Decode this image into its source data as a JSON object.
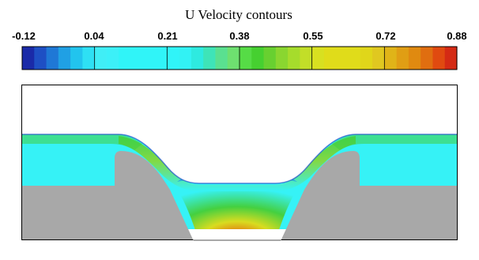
{
  "legend": {
    "title": "U Velocity contours",
    "tick_labels": [
      "-0.12",
      "0.04",
      "0.21",
      "0.38",
      "0.55",
      "0.72",
      "0.88"
    ],
    "band_colors": [
      "#1a2aa8",
      "#1e4fc4",
      "#1f78d6",
      "#20a0e4",
      "#22c4ee",
      "#2ee0f4",
      "#40eef6",
      "#3cf0f8",
      "#30f4f8",
      "#30f4f8",
      "#30f4f8",
      "#30f4f8",
      "#30f4f8",
      "#32f2f4",
      "#2eeae0",
      "#3ee4b8",
      "#5ae090",
      "#6ee070",
      "#56dc46",
      "#46d030",
      "#68d030",
      "#8ad630",
      "#a6dc2c",
      "#c2de28",
      "#d8e020",
      "#e0dc1a",
      "#e0dc1a",
      "#e0dc1a",
      "#e0d61a",
      "#e0c820",
      "#e0b418",
      "#e09e14",
      "#e08a10",
      "#e06e10",
      "#e04a10",
      "#d42a14"
    ]
  },
  "contour_colors": {
    "solid": "#a8a8a8",
    "low": "#1e50c8",
    "mid_low": "#20a0e4",
    "free_stream": "#36f2f6",
    "green": "#44d040",
    "yellow": "#d8dc20",
    "orange": "#e08c12",
    "red": "#d82a10"
  }
}
